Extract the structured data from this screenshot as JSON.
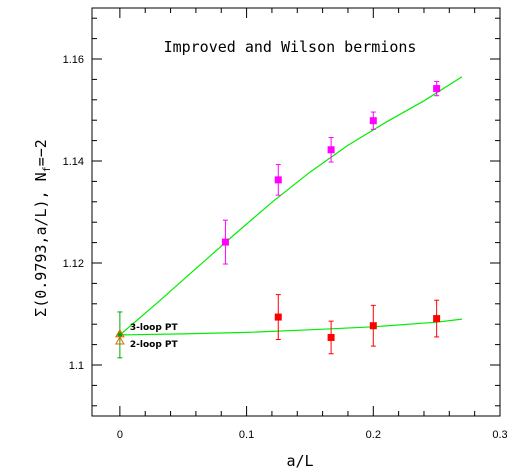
{
  "chart_data": {
    "type": "scatter",
    "title": "Improved and Wilson bermions",
    "xlabel": "a/L",
    "ylabel_main": "Σ(0.9793,a/L),  N",
    "ylabel_sub": "f",
    "ylabel_tail": "=−2",
    "xlim": [
      -0.022,
      0.3
    ],
    "ylim": [
      1.09,
      1.17
    ],
    "xticks": [
      0,
      0.1,
      0.2,
      0.3
    ],
    "yticks": [
      1.1,
      1.12,
      1.14,
      1.16
    ],
    "xtick_labels": [
      "0",
      "0.1",
      "0.2",
      "0.3"
    ],
    "ytick_labels": [
      "1.1",
      "1.12",
      "1.14",
      "1.16"
    ],
    "grid": false,
    "series": [
      {
        "color": "#ff00ff",
        "marker": "square",
        "x": [
          0.0833,
          0.125,
          0.1667,
          0.2,
          0.25
        ],
        "y": [
          1.1241,
          1.1363,
          1.1422,
          1.1479,
          1.1542
        ],
        "err": [
          0.0043,
          0.003,
          0.0024,
          0.0017,
          0.0014
        ]
      },
      {
        "color": "#ff0000",
        "marker": "square",
        "x": [
          0.125,
          0.1667,
          0.2,
          0.25
        ],
        "y": [
          1.1094,
          1.1054,
          1.1077,
          1.1091
        ],
        "err": [
          0.0044,
          0.0032,
          0.004,
          0.0036
        ]
      }
    ],
    "fits": [
      {
        "color": "#00ee00",
        "x": [
          0,
          0.03,
          0.06,
          0.09,
          0.12,
          0.15,
          0.18,
          0.21,
          0.24,
          0.27
        ],
        "y": [
          1.1059,
          1.1123,
          1.1189,
          1.1255,
          1.1319,
          1.1378,
          1.1431,
          1.1476,
          1.1518,
          1.1565
        ]
      },
      {
        "color": "#00ee00",
        "x": [
          0,
          0.05,
          0.1,
          0.15,
          0.2,
          0.25,
          0.27
        ],
        "y": [
          1.1059,
          1.1061,
          1.1064,
          1.1069,
          1.1075,
          1.1084,
          1.109
        ]
      }
    ],
    "continuum_point": {
      "color": "#00aa00",
      "x": 0,
      "y": 1.1059,
      "err": 0.0045
    },
    "pt_markers": [
      {
        "label": "3-loop PT",
        "x": 0,
        "y": 1.1061,
        "color": "#dd6600"
      },
      {
        "label": "2-loop PT",
        "x": 0,
        "y": 1.1047,
        "color": "#dd6600"
      }
    ]
  }
}
